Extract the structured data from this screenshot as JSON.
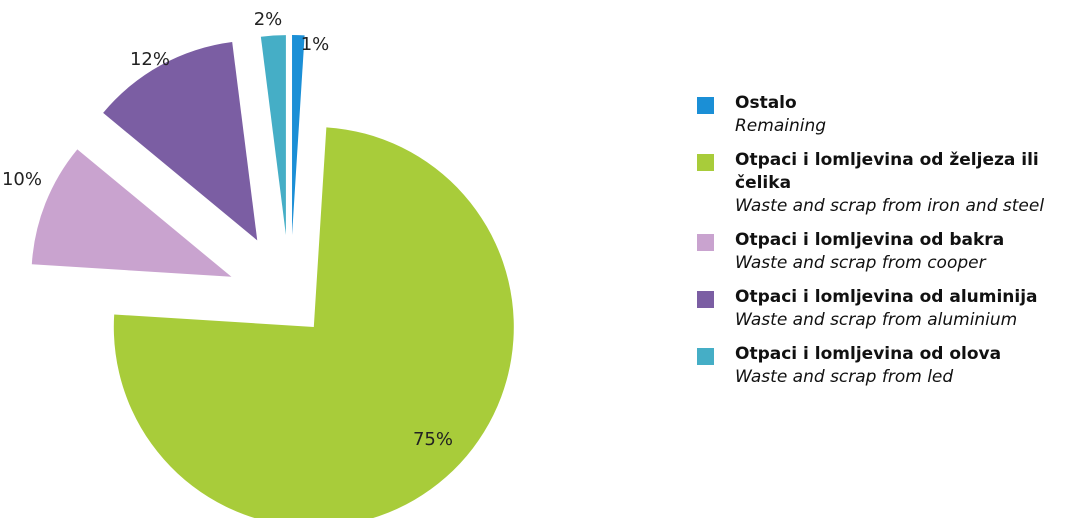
{
  "chart_data": {
    "type": "pie",
    "categories": [
      "Ostalo",
      "Otpaci i lomljevina od željeza ili čelika",
      "Otpaci i lomljevina od bakra",
      "Otpaci i lomljevina od aluminija",
      "Otpaci i lomljevina od olova"
    ],
    "categories_en": [
      "Remaining",
      "Waste and scrap from iron and steel",
      "Waste and scrap from cooper",
      "Waste and scrap from aluminium",
      "Waste and scrap from led"
    ],
    "values": [
      1,
      75,
      10,
      12,
      2
    ],
    "value_labels": [
      "1%",
      "75%",
      "10%",
      "12%",
      "2%"
    ],
    "colors": [
      "#1b8fd6",
      "#a8cc3a",
      "#c9a3cf",
      "#7b5ea3",
      "#45aec6"
    ],
    "legend": "right"
  }
}
